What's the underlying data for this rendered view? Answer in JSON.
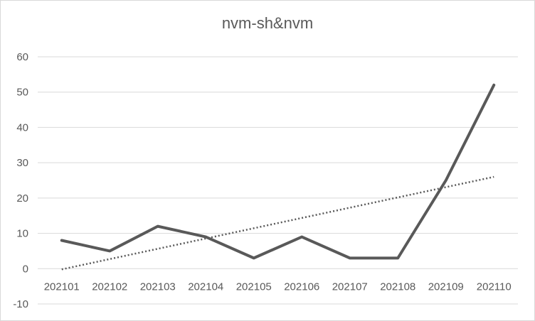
{
  "chart_data": {
    "type": "line",
    "title": "nvm-sh&nvm",
    "xlabel": "",
    "ylabel": "",
    "categories": [
      "202101",
      "202102",
      "202103",
      "202104",
      "202105",
      "202106",
      "202107",
      "202108",
      "202109",
      "202110"
    ],
    "series": [
      {
        "values": [
          8,
          5,
          12,
          9,
          3,
          9,
          3,
          3,
          25,
          52
        ],
        "color": "#595959",
        "style": "solid"
      }
    ],
    "trendline": {
      "type": "linear",
      "start": -0.2,
      "end": 26,
      "color": "#595959",
      "style": "dotted"
    },
    "ylim": [
      -10,
      60
    ],
    "yticks": [
      -10,
      0,
      10,
      20,
      30,
      40,
      50,
      60
    ],
    "grid": true,
    "legend": "none"
  }
}
